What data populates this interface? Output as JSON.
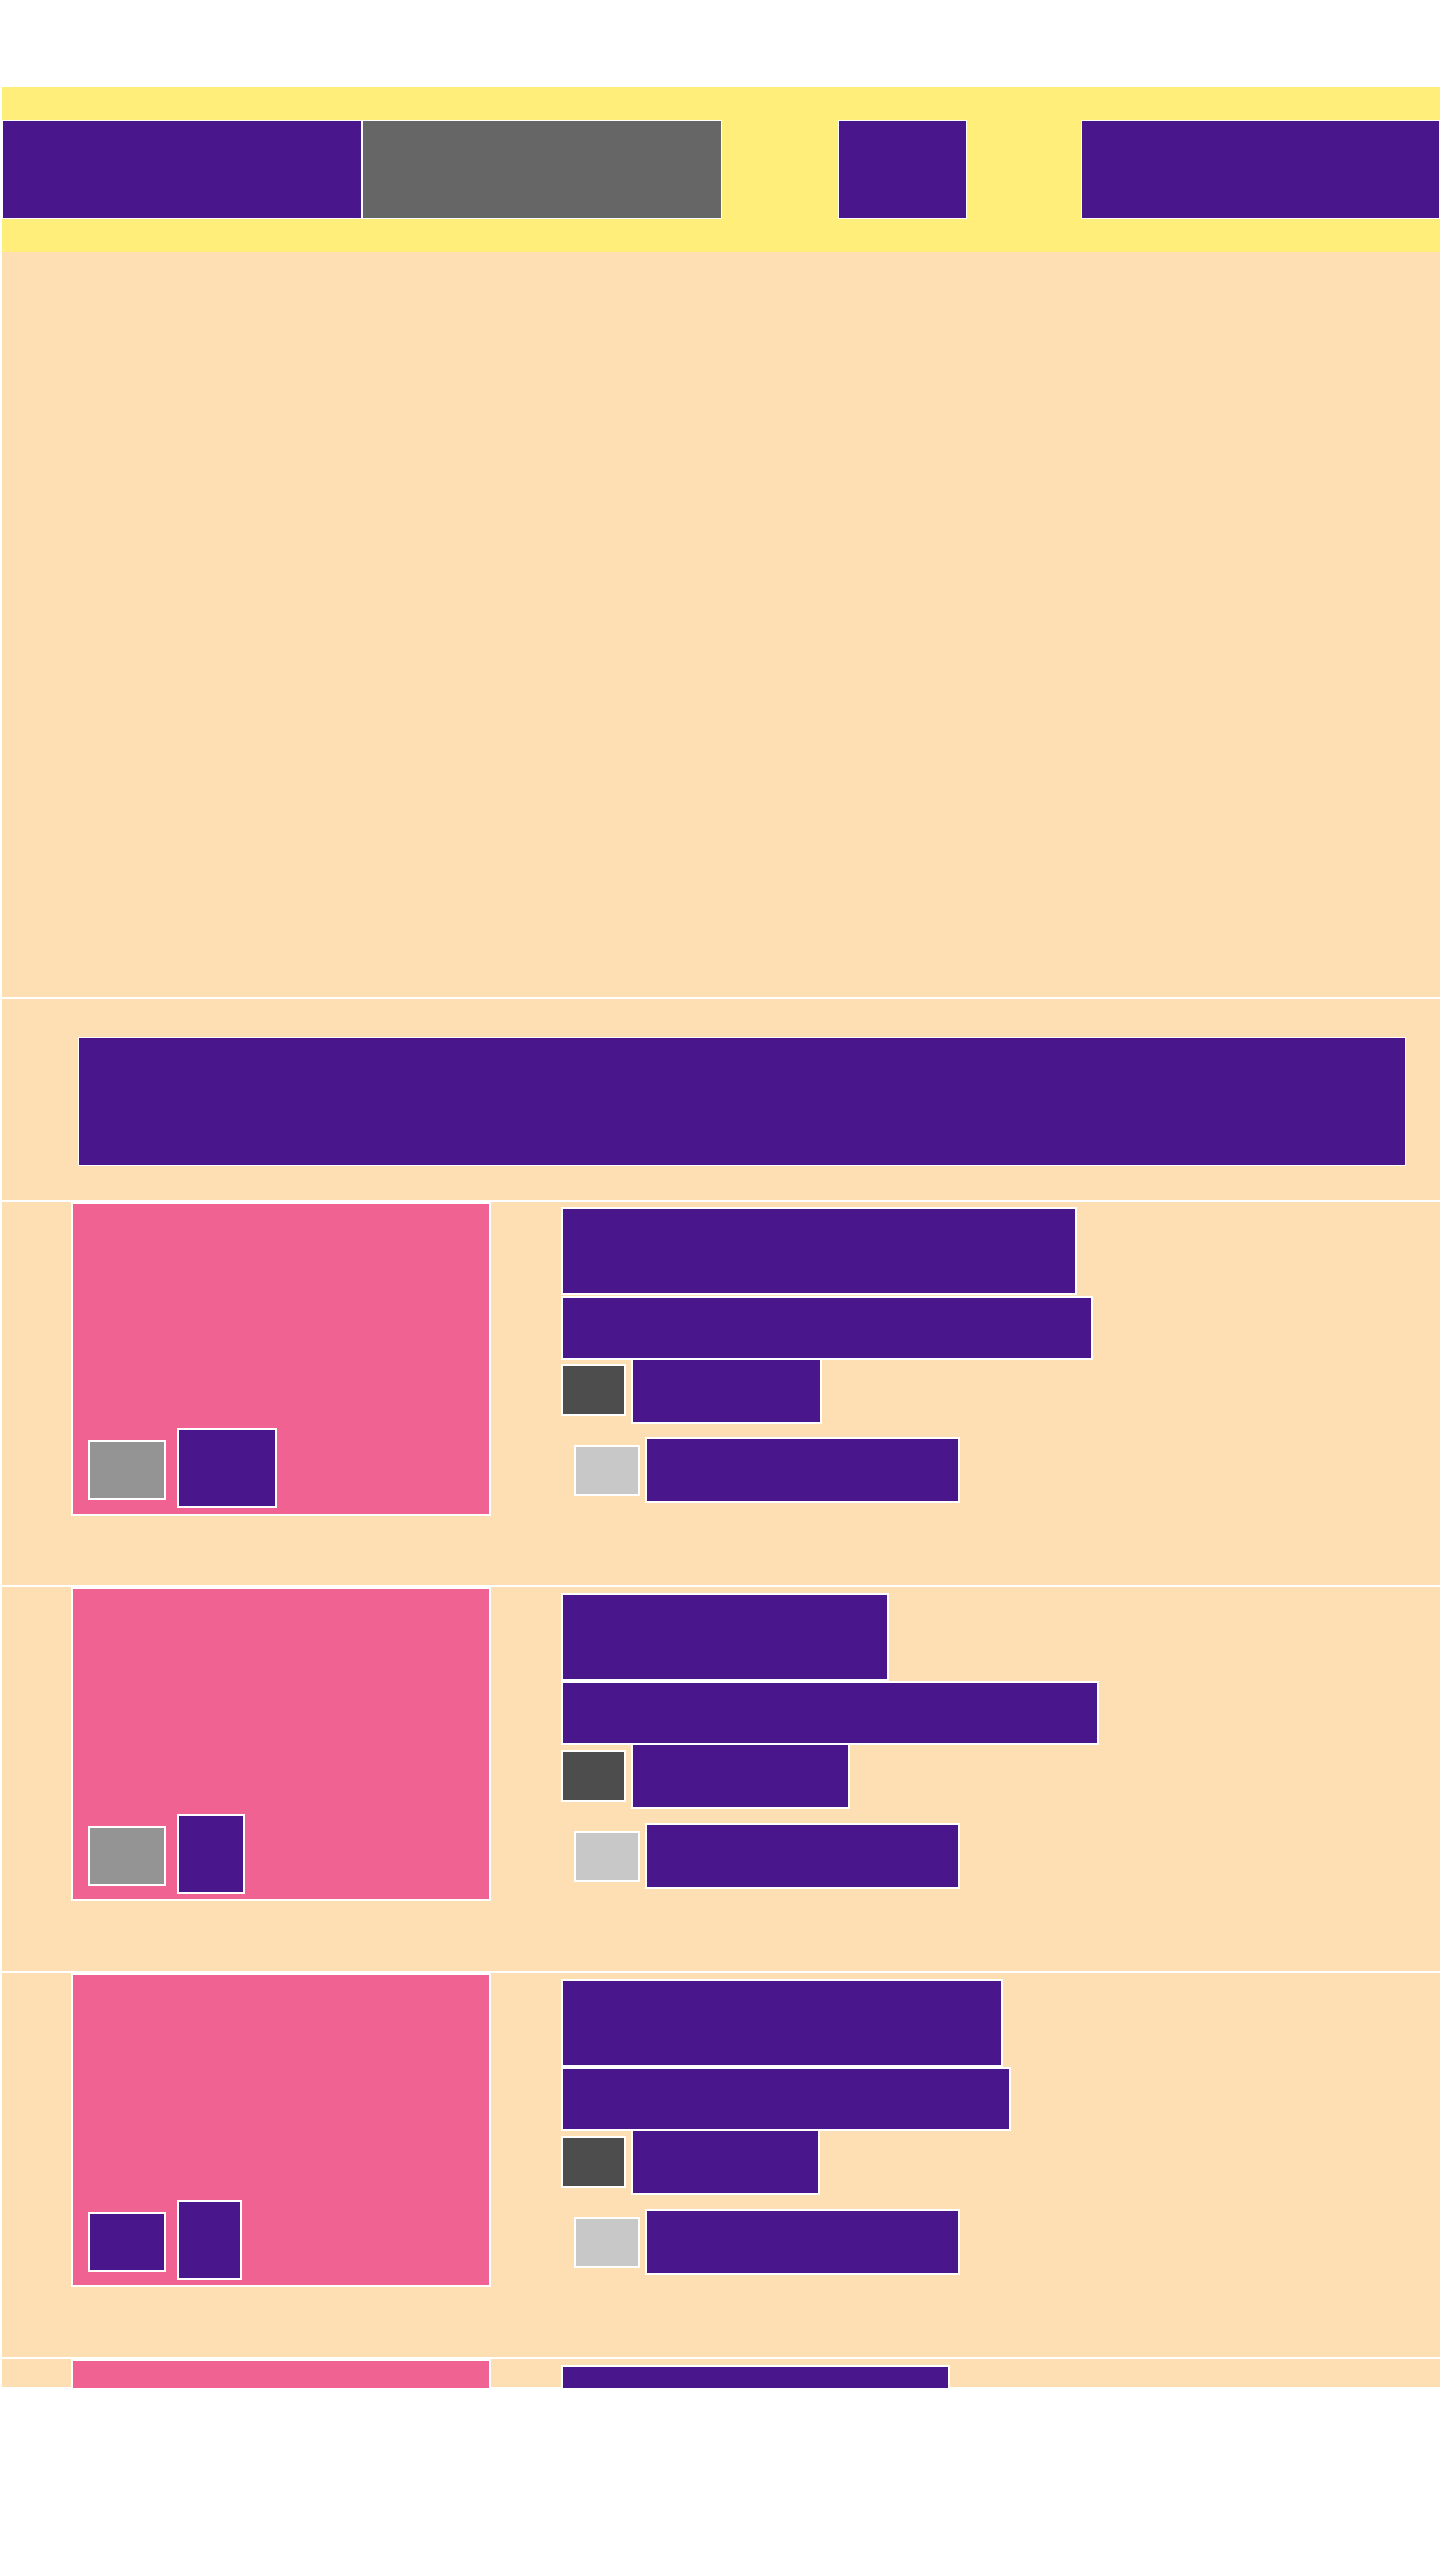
{
  "colors": {
    "header_band": "#FFEF7A",
    "purple": "#49168B",
    "gray": "#666666",
    "content_background": "#FDDFB3",
    "thumbnail_pink": "#F06292",
    "light_gray": "#949494",
    "dark_gray": "#4D4D4D",
    "pale_gray": "#C8C8C8",
    "white": "#FFFFFF"
  },
  "header": {
    "nav_items": [
      {
        "label": ""
      },
      {
        "label": ""
      },
      {
        "label": ""
      },
      {
        "label": ""
      }
    ]
  },
  "hero": {
    "title": ""
  },
  "search": {
    "label": ""
  },
  "results": [
    {
      "thumbnail": {
        "badge_left": "",
        "badge_right": ""
      },
      "title": "",
      "subtitle": "",
      "meta_icon": "",
      "meta_text": "",
      "action_icon": "",
      "action_label": ""
    },
    {
      "thumbnail": {
        "badge_left": "",
        "badge_right": ""
      },
      "title": "",
      "subtitle": "",
      "meta_icon": "",
      "meta_text": "",
      "action_icon": "",
      "action_label": ""
    },
    {
      "thumbnail": {
        "badge_left": "",
        "badge_right": ""
      },
      "title": "",
      "subtitle": "",
      "meta_icon": "",
      "meta_text": "",
      "action_icon": "",
      "action_label": ""
    },
    {
      "thumbnail": {
        "badge_left": "",
        "badge_right": ""
      },
      "title": "",
      "subtitle": "",
      "meta_icon": "",
      "meta_text": "",
      "action_icon": "",
      "action_label": ""
    }
  ]
}
